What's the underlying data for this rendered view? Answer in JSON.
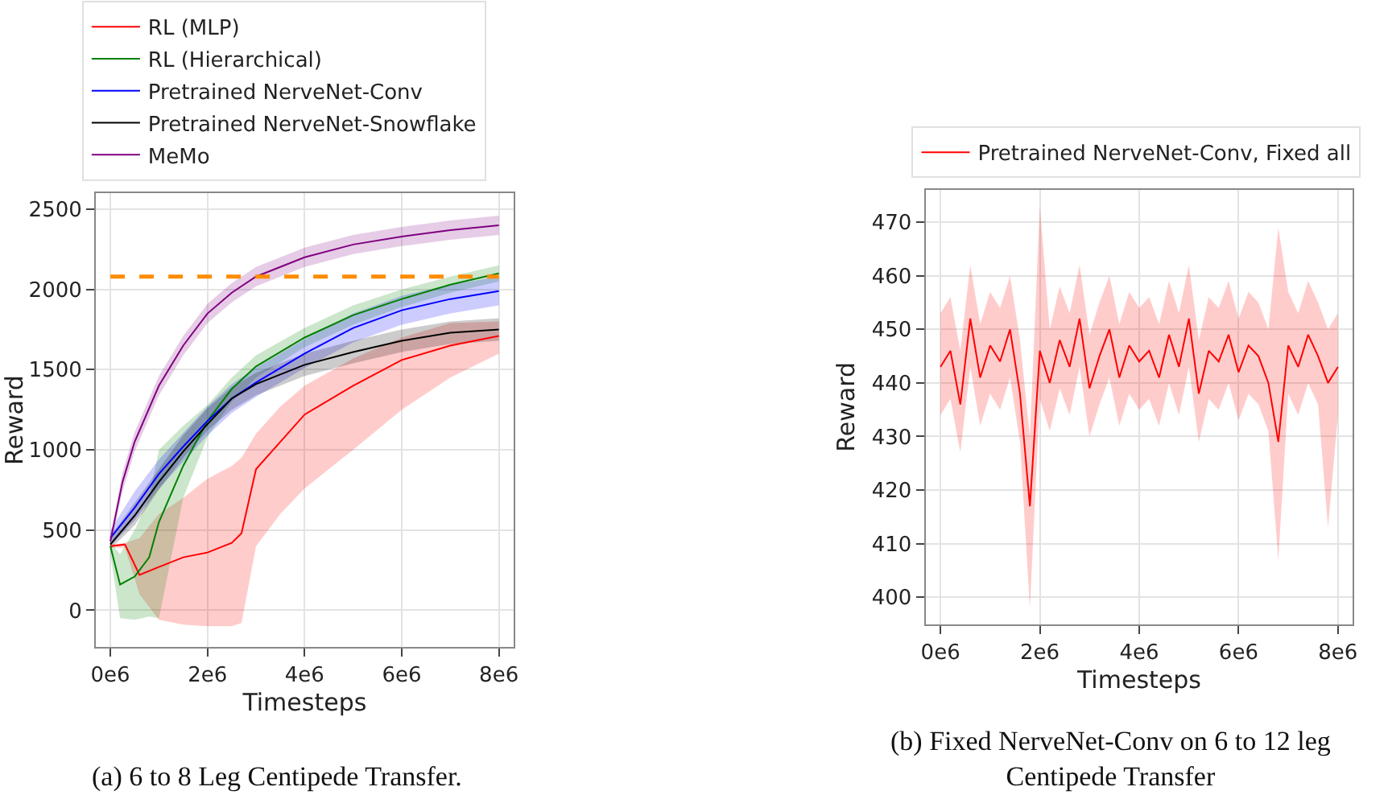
{
  "chart_data": [
    {
      "type": "line",
      "xlabel": "Timesteps",
      "ylabel": "Reward",
      "grid": true,
      "legend": "top",
      "marker": "none",
      "xlim": [
        -300000,
        8300000
      ],
      "xticks": [
        {
          "value": 0,
          "label": "0e6"
        },
        {
          "value": 2000000,
          "label": "2e6"
        },
        {
          "value": 4000000,
          "label": "4e6"
        },
        {
          "value": 6000000,
          "label": "6e6"
        },
        {
          "value": 8000000,
          "label": "8e6"
        }
      ],
      "ylim": [
        -230,
        2600
      ],
      "yticks": [
        0,
        500,
        1000,
        1500,
        2000,
        2500
      ],
      "ref_lines": [
        {
          "axis": "y",
          "value": 2080,
          "color": "#ff8c00",
          "line_style": "dashed"
        }
      ],
      "annotations": [
        "(a) 6 to 8 Leg Centipede Transfer."
      ],
      "series": [
        {
          "name": "RL (MLP)",
          "color": "#ff0000",
          "x": [
            0,
            300000,
            600000,
            1000000,
            1500000,
            2000000,
            2500000,
            2700000,
            3000000,
            3500000,
            4000000,
            5000000,
            6000000,
            7000000,
            8000000
          ],
          "values": [
            400,
            410,
            220,
            270,
            330,
            360,
            420,
            480,
            880,
            1050,
            1220,
            1400,
            1560,
            1650,
            1710
          ],
          "lower": [
            390,
            390,
            100,
            -60,
            -90,
            -100,
            -100,
            -80,
            400,
            600,
            760,
            1000,
            1250,
            1450,
            1600
          ],
          "upper": [
            410,
            420,
            450,
            600,
            700,
            820,
            900,
            950,
            1100,
            1270,
            1400,
            1570,
            1700,
            1790,
            1800
          ]
        },
        {
          "name": "RL (Hierarchical)",
          "color": "#008000",
          "x": [
            0,
            200000,
            500000,
            800000,
            1000000,
            1500000,
            2000000,
            2500000,
            3000000,
            4000000,
            5000000,
            6000000,
            7000000,
            8000000
          ],
          "values": [
            400,
            160,
            210,
            330,
            550,
            900,
            1180,
            1380,
            1520,
            1700,
            1840,
            1940,
            2030,
            2100
          ],
          "lower": [
            350,
            -50,
            -60,
            -40,
            -50,
            700,
            1080,
            1300,
            1450,
            1640,
            1780,
            1890,
            1980,
            2050
          ],
          "upper": [
            420,
            350,
            500,
            700,
            1000,
            1150,
            1280,
            1450,
            1590,
            1760,
            1900,
            2000,
            2080,
            2150
          ]
        },
        {
          "name": "Pretrained NerveNet-Conv",
          "color": "#0000ff",
          "x": [
            0,
            500000,
            1000000,
            1500000,
            2000000,
            2500000,
            3000000,
            4000000,
            5000000,
            6000000,
            7000000,
            8000000
          ],
          "values": [
            450,
            640,
            850,
            1020,
            1180,
            1320,
            1420,
            1600,
            1760,
            1870,
            1940,
            1990
          ],
          "lower": [
            400,
            560,
            760,
            930,
            1090,
            1230,
            1330,
            1510,
            1670,
            1780,
            1850,
            1900
          ],
          "upper": [
            500,
            740,
            940,
            1110,
            1270,
            1410,
            1510,
            1690,
            1850,
            1960,
            2030,
            2080
          ]
        },
        {
          "name": "Pretrained NerveNet-Snowflake",
          "color": "#000000",
          "x": [
            0,
            500000,
            1000000,
            1500000,
            2000000,
            2500000,
            3000000,
            4000000,
            5000000,
            6000000,
            7000000,
            8000000
          ],
          "values": [
            410,
            590,
            800,
            990,
            1160,
            1320,
            1410,
            1530,
            1610,
            1680,
            1730,
            1750
          ],
          "lower": [
            380,
            530,
            750,
            950,
            1120,
            1250,
            1340,
            1460,
            1540,
            1610,
            1660,
            1680
          ],
          "upper": [
            460,
            670,
            890,
            1090,
            1260,
            1390,
            1480,
            1600,
            1680,
            1750,
            1800,
            1820
          ]
        },
        {
          "name": "MeMo",
          "color": "#800080",
          "x": [
            0,
            250000,
            500000,
            1000000,
            1500000,
            2000000,
            2500000,
            3000000,
            4000000,
            5000000,
            6000000,
            7000000,
            8000000
          ],
          "values": [
            430,
            800,
            1050,
            1400,
            1650,
            1850,
            1980,
            2080,
            2200,
            2280,
            2330,
            2370,
            2400
          ],
          "lower": [
            400,
            740,
            990,
            1340,
            1590,
            1790,
            1920,
            2020,
            2140,
            2220,
            2270,
            2310,
            2340
          ],
          "upper": [
            460,
            860,
            1110,
            1460,
            1710,
            1910,
            2040,
            2140,
            2260,
            2340,
            2390,
            2430,
            2460
          ]
        }
      ]
    },
    {
      "type": "line",
      "xlabel": "Timesteps",
      "ylabel": "Reward",
      "grid": true,
      "legend": "top",
      "marker": "none",
      "xlim": [
        -300000,
        8300000
      ],
      "xticks": [
        {
          "value": 0,
          "label": "0e6"
        },
        {
          "value": 2000000,
          "label": "2e6"
        },
        {
          "value": 4000000,
          "label": "4e6"
        },
        {
          "value": 6000000,
          "label": "6e6"
        },
        {
          "value": 8000000,
          "label": "8e6"
        }
      ],
      "ylim": [
        395,
        476
      ],
      "yticks": [
        400,
        410,
        420,
        430,
        440,
        450,
        460,
        470
      ],
      "annotations": [
        "(b) Fixed NerveNet-Conv on 6 to 12 leg Centipede Transfer"
      ],
      "series": [
        {
          "name": "Pretrained NerveNet-Conv, Fixed all",
          "color": "#ff0000",
          "x": [
            0,
            200000,
            400000,
            600000,
            800000,
            1000000,
            1200000,
            1400000,
            1600000,
            1800000,
            2000000,
            2200000,
            2400000,
            2600000,
            2800000,
            3000000,
            3200000,
            3400000,
            3600000,
            3800000,
            4000000,
            4200000,
            4400000,
            4600000,
            4800000,
            5000000,
            5200000,
            5400000,
            5600000,
            5800000,
            6000000,
            6200000,
            6400000,
            6600000,
            6800000,
            7000000,
            7200000,
            7400000,
            7600000,
            7800000,
            8000000
          ],
          "values": [
            443,
            446,
            436,
            452,
            441,
            447,
            444,
            450,
            438,
            417,
            446,
            440,
            448,
            443,
            452,
            439,
            445,
            450,
            441,
            447,
            444,
            446,
            441,
            449,
            443,
            452,
            438,
            446,
            444,
            449,
            442,
            447,
            445,
            440,
            429,
            447,
            443,
            449,
            445,
            440,
            443
          ],
          "lower": [
            434,
            437,
            427,
            443,
            432,
            438,
            435,
            441,
            429,
            398,
            437,
            431,
            439,
            434,
            443,
            430,
            436,
            441,
            432,
            438,
            435,
            437,
            432,
            440,
            434,
            443,
            429,
            437,
            435,
            440,
            433,
            438,
            436,
            431,
            407,
            438,
            434,
            440,
            436,
            413,
            434
          ],
          "upper": [
            453,
            456,
            446,
            462,
            451,
            457,
            454,
            460,
            448,
            430,
            473,
            450,
            458,
            453,
            462,
            449,
            455,
            460,
            451,
            457,
            454,
            456,
            451,
            459,
            453,
            462,
            448,
            456,
            454,
            459,
            452,
            457,
            455,
            450,
            469,
            457,
            453,
            459,
            455,
            450,
            453
          ]
        }
      ]
    }
  ]
}
